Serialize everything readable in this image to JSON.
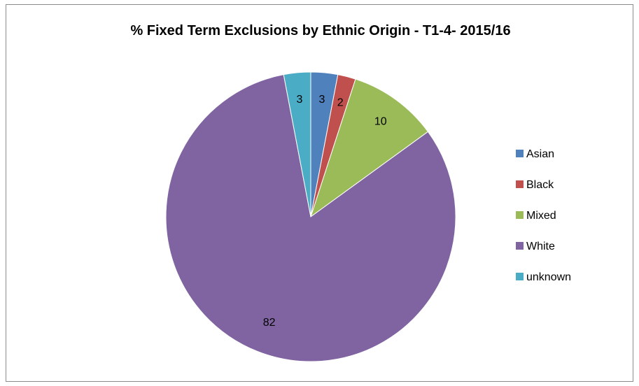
{
  "chart_data": {
    "type": "pie",
    "title": "% Fixed Term Exclusions by Ethnic Origin - T1-4- 2015/16",
    "categories": [
      "Asian",
      "Black",
      "Mixed",
      "White",
      "unknown"
    ],
    "values": [
      3,
      2,
      10,
      82,
      3
    ],
    "colors": [
      "#4f81bd",
      "#c0504d",
      "#9bbb59",
      "#8064a2",
      "#4bacc6"
    ],
    "legend_position": "right"
  }
}
